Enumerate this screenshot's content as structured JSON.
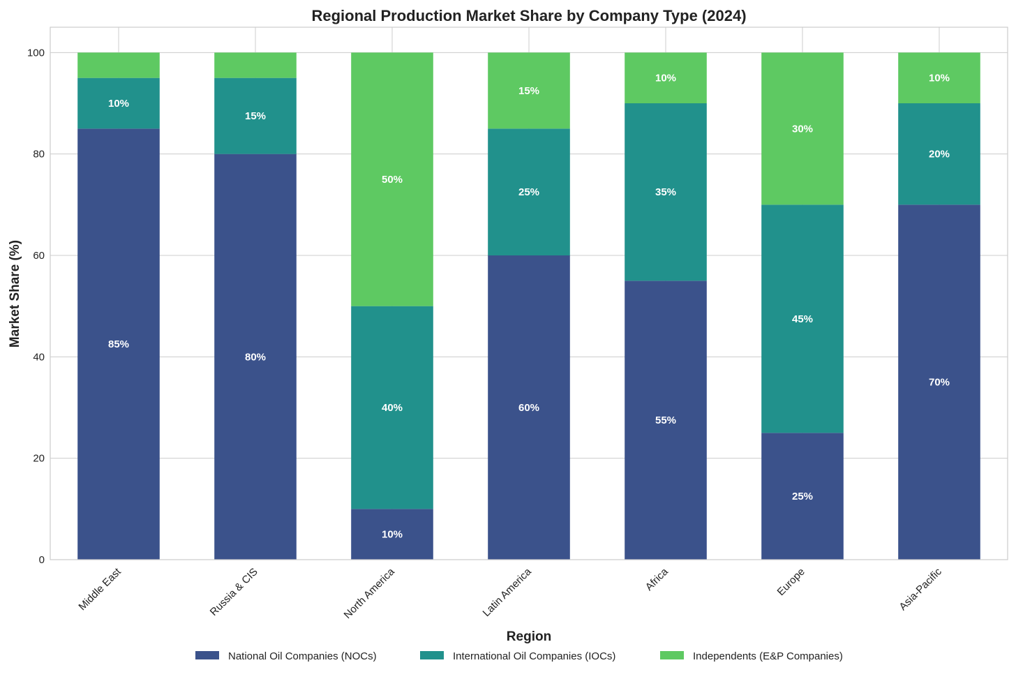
{
  "chart_data": {
    "type": "bar",
    "stacked": true,
    "title": "Regional Production Market Share by Company Type (2024)",
    "xlabel": "Region",
    "ylabel": "Market Share (%)",
    "ylim": [
      0,
      105
    ],
    "yticks": [
      0,
      20,
      40,
      60,
      80,
      100
    ],
    "grid": true,
    "legend_position": "bottom",
    "categories": [
      "Middle East",
      "Russia & CIS",
      "North America",
      "Latin America",
      "Africa",
      "Europe",
      "Asia-Pacific"
    ],
    "series": [
      {
        "name": "National Oil Companies (NOCs)",
        "color": "#3b528b",
        "values": [
          85,
          80,
          10,
          60,
          55,
          25,
          70
        ]
      },
      {
        "name": "International Oil Companies (IOCs)",
        "color": "#21918c",
        "values": [
          10,
          15,
          40,
          25,
          35,
          45,
          20
        ]
      },
      {
        "name": "Independents (E&P Companies)",
        "color": "#5ec962",
        "values": [
          5,
          5,
          50,
          15,
          10,
          30,
          10
        ]
      }
    ],
    "data_labels": [
      [
        "85%",
        "80%",
        "10%",
        "60%",
        "55%",
        "25%",
        "70%"
      ],
      [
        "10%",
        "15%",
        "40%",
        "25%",
        "35%",
        "45%",
        "20%"
      ],
      [
        "",
        "",
        "50%",
        "15%",
        "10%",
        "30%",
        "10%"
      ]
    ]
  }
}
